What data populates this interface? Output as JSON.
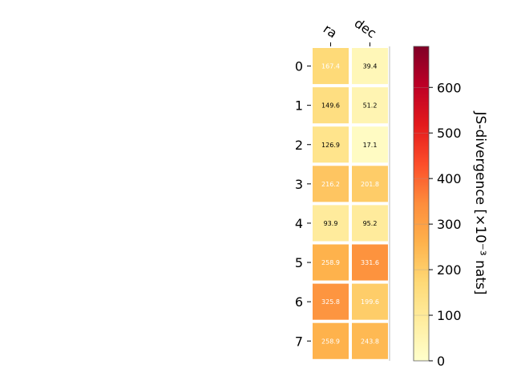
{
  "chart_data": {
    "type": "heatmap",
    "columns": [
      "ra",
      "dec"
    ],
    "rows": [
      "0",
      "1",
      "2",
      "3",
      "4",
      "5",
      "6",
      "7"
    ],
    "values": [
      [
        167.4,
        39.4
      ],
      [
        149.6,
        51.2
      ],
      [
        126.9,
        17.1
      ],
      [
        216.2,
        201.8
      ],
      [
        93.9,
        95.2
      ],
      [
        258.9,
        331.6
      ],
      [
        325.8,
        199.6
      ],
      [
        258.9,
        243.8
      ]
    ],
    "value_labels": [
      [
        "167.4",
        "39.4"
      ],
      [
        "149.6",
        "51.2"
      ],
      [
        "126.9",
        "17.1"
      ],
      [
        "216.2",
        "201.8"
      ],
      [
        "93.9",
        "95.2"
      ],
      [
        "258.9",
        "331.6"
      ],
      [
        "325.8",
        "199.6"
      ],
      [
        "258.9",
        "243.8"
      ]
    ],
    "colorbar": {
      "label": "JS-divergence [×10⁻³ nats]",
      "range": [
        0,
        690
      ],
      "ticks": [
        "0",
        "100",
        "200",
        "300",
        "400",
        "500",
        "600"
      ],
      "colormap": "YlOrRd"
    }
  }
}
